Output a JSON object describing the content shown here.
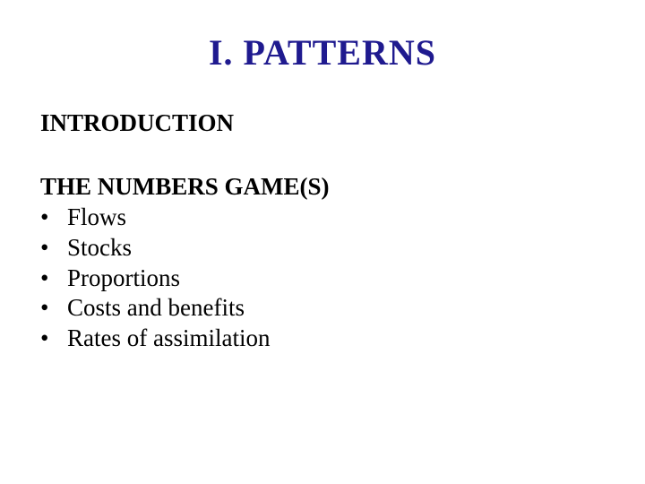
{
  "title": "I.  PATTERNS",
  "subtitle": "INTRODUCTION",
  "section_heading": "THE NUMBERS GAME(S)",
  "bullets": [
    "Flows",
    "Stocks",
    "Proportions",
    "Costs and benefits",
    "Rates of assimilation"
  ],
  "bullet_char": "•",
  "colors": {
    "title_color": "#1f1a8f",
    "text_color": "#000000",
    "background_color": "#ffffff"
  },
  "typography": {
    "title_fontsize": 40,
    "body_fontsize": 27,
    "font_family": "Times New Roman"
  }
}
